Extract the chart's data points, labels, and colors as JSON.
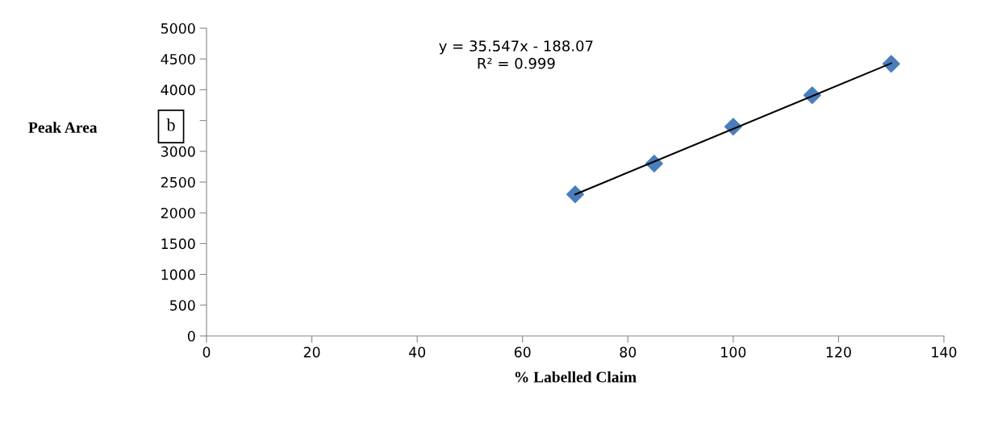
{
  "chart_data": {
    "type": "scatter",
    "xlabel": "% Labelled Claim",
    "ylabel": "Peak Area",
    "annotations": [
      "y = 35.547x - 188.07\nR² = 0.999",
      "b"
    ],
    "x": [
      70,
      85,
      100,
      115,
      130
    ],
    "series": [
      {
        "color": "#4a7ebb",
        "marker": "diamond",
        "values": [
          2300,
          2800,
          3400,
          3910,
          4420
        ]
      },
      {
        "type": "line",
        "color": "#000000",
        "marker": "none",
        "x": [
          70,
          130
        ],
        "values": [
          2300,
          4430
        ]
      }
    ],
    "xlim": [
      0,
      140
    ],
    "xticks": [
      0,
      20,
      40,
      60,
      80,
      100,
      120,
      140
    ],
    "ylim": [
      0,
      5000
    ],
    "yticks": [
      0,
      500,
      1000,
      1500,
      2000,
      2500,
      3000,
      {
        "value": 3500,
        "label": null
      },
      4000,
      4500,
      5000
    ],
    "grid": false,
    "legend": false
  }
}
